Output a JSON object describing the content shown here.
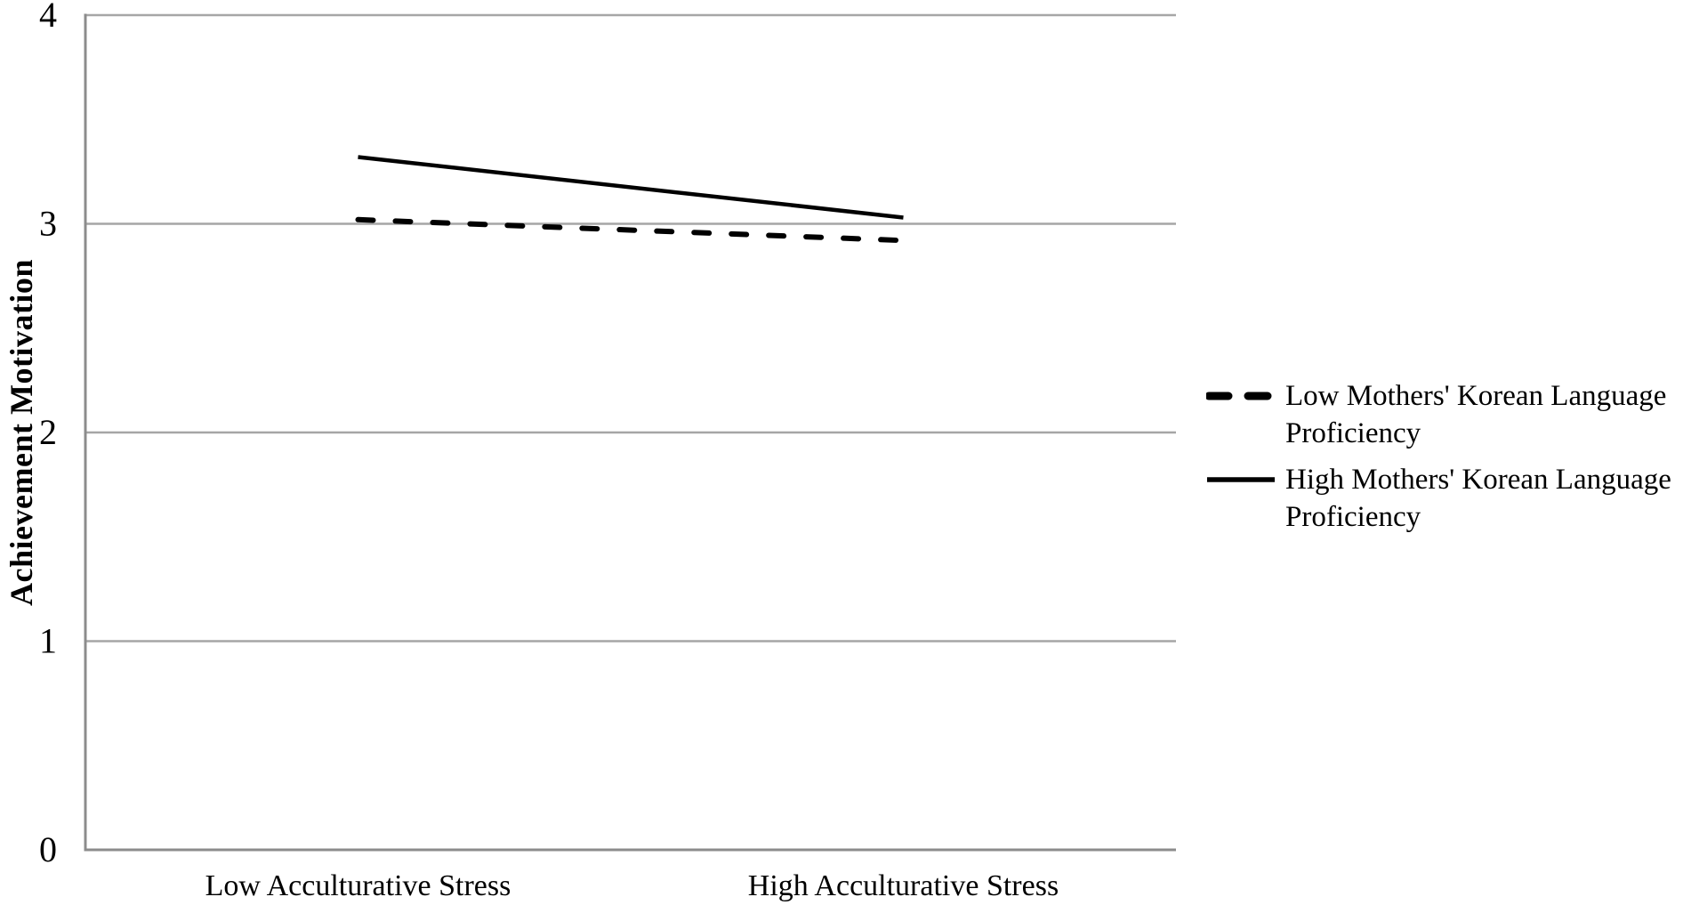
{
  "chart_data": {
    "type": "line",
    "title": "",
    "categories": [
      "Low Acculturative Stress",
      "High Acculturative Stress"
    ],
    "series": [
      {
        "name": "Low Mothers' Korean Language Proficiency",
        "values": [
          3.02,
          2.92
        ],
        "style": "dashed",
        "color": "#000000"
      },
      {
        "name": "High Mothers' Korean Language Proficiency",
        "values": [
          3.32,
          3.03
        ],
        "style": "solid",
        "color": "#000000"
      }
    ],
    "xlabel": "",
    "ylabel": "Achievement Motivation",
    "ylim": [
      0,
      4
    ],
    "yticks": [
      0,
      1,
      2,
      3,
      4
    ],
    "grid": true,
    "legend_position": "right"
  },
  "colors": {
    "background": "#ffffff",
    "gridline": "#a6a6a6",
    "axis": "#8c8c8c",
    "text": "#000000",
    "series_line": "#000000"
  }
}
